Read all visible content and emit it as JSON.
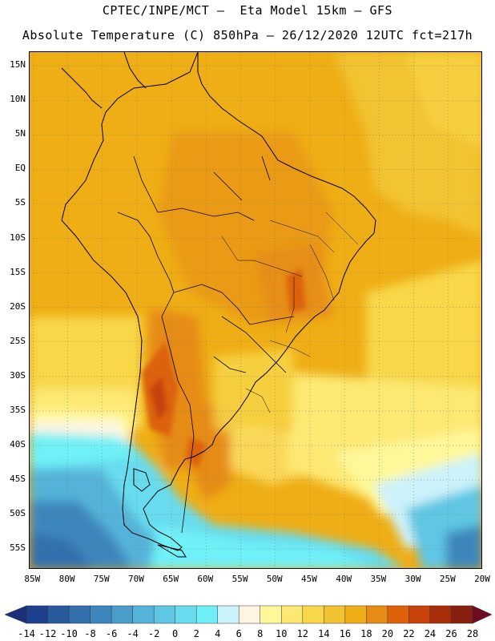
{
  "header": {
    "line1": "CPTEC/INPE/MCT –  Eta Model 15km – GFS",
    "line2": "Absolute Temperature (C) 850hPa – 26/12/2020 12UTC fct=217h"
  },
  "map": {
    "lat_labels": [
      "15N",
      "10N",
      "5N",
      "EQ",
      "5S",
      "10S",
      "15S",
      "20S",
      "25S",
      "30S",
      "35S",
      "40S",
      "45S",
      "50S",
      "55S"
    ],
    "lat_values": [
      15,
      10,
      5,
      0,
      -5,
      -10,
      -15,
      -20,
      -25,
      -30,
      -35,
      -40,
      -45,
      -50,
      -55
    ],
    "lon_labels": [
      "85W",
      "80W",
      "75W",
      "70W",
      "65W",
      "60W",
      "55W",
      "50W",
      "45W",
      "40W",
      "35W",
      "30W",
      "25W",
      "20W"
    ],
    "lon_values": [
      -85,
      -80,
      -75,
      -70,
      -65,
      -60,
      -55,
      -50,
      -45,
      -40,
      -35,
      -30,
      -25,
      -20
    ],
    "extent": {
      "lon_min": -85.5,
      "lon_max": -20,
      "lat_min": -58,
      "lat_max": 17
    }
  },
  "colorbar": {
    "labels": [
      "-14",
      "-12",
      "-10",
      "-8",
      "-6",
      "-4",
      "-2",
      "0",
      "2",
      "4",
      "6",
      "8",
      "10",
      "12",
      "14",
      "16",
      "18",
      "20",
      "22",
      "24",
      "26",
      "28"
    ],
    "colors": [
      "#1f3f8f",
      "#2a5a9e",
      "#3370ad",
      "#3c86bd",
      "#4a9ccb",
      "#55b2d8",
      "#5fc6e3",
      "#68dbee",
      "#6ff0f7",
      "#ccf2fb",
      "#fdf5e2",
      "#fef89a",
      "#fde873",
      "#f8d74a",
      "#f2c331",
      "#efae16",
      "#e68b15",
      "#dd620a",
      "#c8420a",
      "#a82e0a",
      "#86200e"
    ],
    "left_arrow_color": "#1e2f7a",
    "right_arrow_color": "#6e0a22"
  }
}
